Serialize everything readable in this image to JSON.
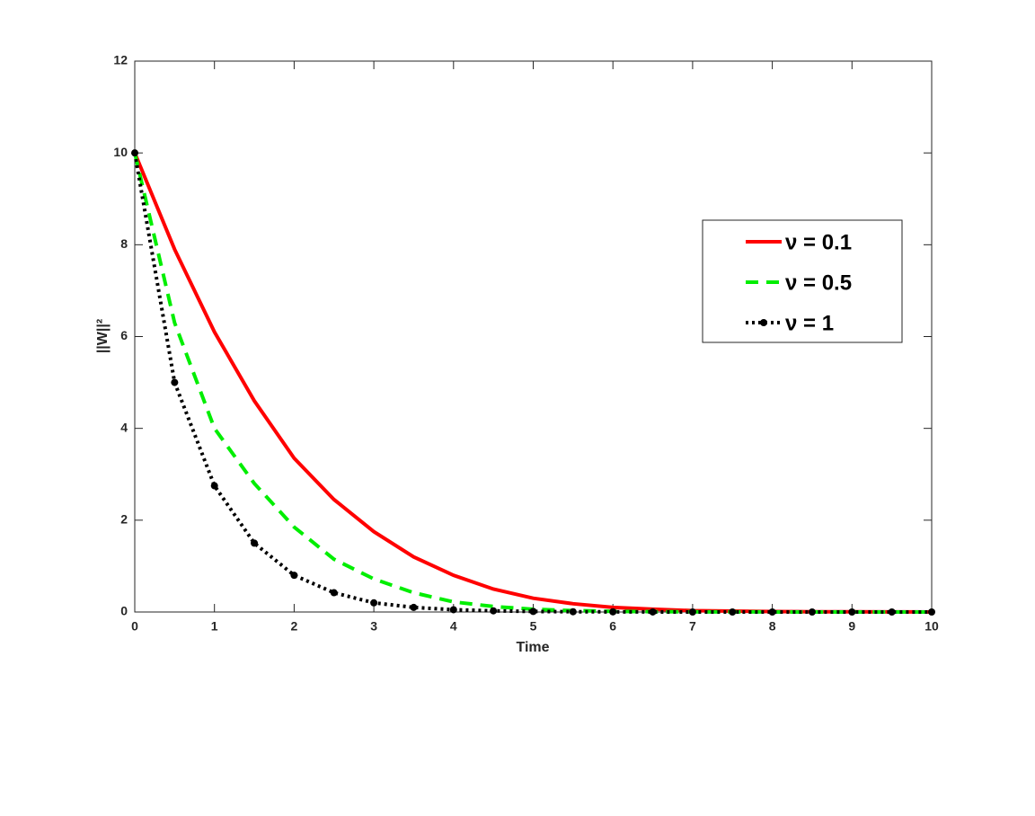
{
  "chart_data": {
    "type": "line",
    "xlabel": "Time",
    "ylabel": "||W||²",
    "x": [
      0,
      0.5,
      1,
      1.5,
      2,
      2.5,
      3,
      3.5,
      4,
      4.5,
      5,
      5.5,
      6,
      6.5,
      7,
      7.5,
      8,
      8.5,
      9,
      9.5,
      10
    ],
    "series": [
      {
        "name": "ν = 0.1",
        "color": "#ff0000",
        "linestyle": "solid",
        "marker": false,
        "values": [
          10,
          7.9,
          6.1,
          4.6,
          3.35,
          2.45,
          1.75,
          1.2,
          0.8,
          0.5,
          0.3,
          0.18,
          0.1,
          0.06,
          0.03,
          0.02,
          0.01,
          0.006,
          0.004,
          0.002,
          0.001
        ]
      },
      {
        "name": "ν = 0.5",
        "color": "#00ee00",
        "linestyle": "dashed",
        "marker": false,
        "values": [
          10,
          6.3,
          4.0,
          2.8,
          1.85,
          1.15,
          0.72,
          0.42,
          0.22,
          0.12,
          0.06,
          0.03,
          0.015,
          0.008,
          0.004,
          0.002,
          0.001,
          0,
          0,
          0,
          0
        ]
      },
      {
        "name": "ν = 1",
        "color": "#000000",
        "linestyle": "dotted",
        "marker": true,
        "values": [
          10,
          5.0,
          2.75,
          1.5,
          0.8,
          0.42,
          0.2,
          0.1,
          0.05,
          0.025,
          0.012,
          0.006,
          0.003,
          0.001,
          0,
          0,
          0,
          0,
          0,
          0,
          0
        ]
      }
    ],
    "xlim": [
      0,
      10
    ],
    "xticks": [
      0,
      1,
      2,
      3,
      4,
      5,
      6,
      7,
      8,
      9,
      10
    ],
    "ylim": [
      0,
      12
    ],
    "yticks": [
      0,
      2,
      4,
      6,
      8,
      10,
      12
    ],
    "grid": false,
    "legend": "upper right"
  }
}
